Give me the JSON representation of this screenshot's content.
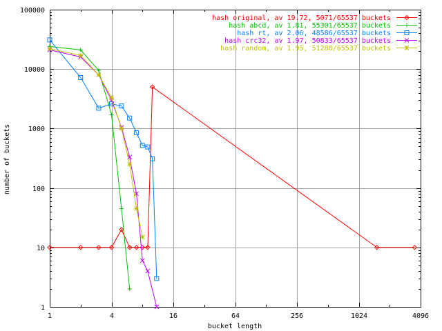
{
  "chart_data": {
    "type": "line",
    "title": "",
    "xlabel": "bucket length",
    "ylabel": "number of buckets",
    "xscale": "log2",
    "yscale": "log10",
    "xlim": [
      1,
      4096
    ],
    "ylim": [
      1,
      100000
    ],
    "grid": true,
    "legend_position": "top-right",
    "xticks": [
      {
        "value": 1,
        "label": "1"
      },
      {
        "value": 4,
        "label": "4"
      },
      {
        "value": 16,
        "label": "16"
      },
      {
        "value": 64,
        "label": "64"
      },
      {
        "value": 256,
        "label": "256"
      },
      {
        "value": 1024,
        "label": "1024"
      },
      {
        "value": 4096,
        "label": "4096"
      }
    ],
    "yticks": [
      {
        "value": 1,
        "label": "1"
      },
      {
        "value": 10,
        "label": "10"
      },
      {
        "value": 100,
        "label": "100"
      },
      {
        "value": 1000,
        "label": "1000"
      },
      {
        "value": 10000,
        "label": "10000"
      },
      {
        "value": 100000,
        "label": "100000"
      }
    ],
    "series": [
      {
        "name": "hash original, av 19.72, 5071/65537 buckets",
        "color": "#ff0000",
        "marker": "diamond",
        "points": [
          [
            1,
            10
          ],
          [
            2,
            10
          ],
          [
            3,
            10
          ],
          [
            4,
            10
          ],
          [
            5,
            20
          ],
          [
            6,
            10
          ],
          [
            7,
            10
          ],
          [
            8,
            10
          ],
          [
            9,
            10
          ],
          [
            10,
            5000
          ],
          [
            1536,
            10
          ],
          [
            3584,
            10
          ]
        ]
      },
      {
        "name": "hash abcd, av 1.81, 55301/65537 buckets",
        "color": "#00c000",
        "marker": "plus",
        "points": [
          [
            1,
            24000
          ],
          [
            2,
            21000
          ],
          [
            3,
            9500
          ],
          [
            4,
            1700
          ],
          [
            5,
            45
          ],
          [
            6,
            2
          ]
        ]
      },
      {
        "name": "hash rt, av 2.06, 48586/65537 buckets",
        "color": "#0080ff",
        "marker": "square",
        "points": [
          [
            1,
            31000
          ],
          [
            2,
            7200
          ],
          [
            3,
            2200
          ],
          [
            4,
            2600
          ],
          [
            5,
            2400
          ],
          [
            6,
            1500
          ],
          [
            7,
            850
          ],
          [
            8,
            520
          ],
          [
            9,
            490
          ],
          [
            10,
            310
          ],
          [
            11,
            3
          ]
        ]
      },
      {
        "name": "hash crc32, av 1.97, 50833/65537 buckets",
        "color": "#c000ff",
        "marker": "x",
        "points": [
          [
            1,
            21000
          ],
          [
            2,
            16000
          ],
          [
            3,
            8000
          ],
          [
            4,
            3000
          ],
          [
            5,
            1050
          ],
          [
            6,
            330
          ],
          [
            7,
            80
          ],
          [
            8,
            6
          ],
          [
            9,
            4
          ],
          [
            11,
            1
          ]
        ]
      },
      {
        "name": "hash random, av 1.95, 51288/65537 buckets",
        "color": "#c0c000",
        "marker": "star",
        "points": [
          [
            1,
            22000
          ],
          [
            2,
            17000
          ],
          [
            3,
            8000
          ],
          [
            4,
            3300
          ],
          [
            5,
            1000
          ],
          [
            6,
            250
          ],
          [
            7,
            45
          ],
          [
            8,
            15
          ]
        ]
      }
    ]
  }
}
